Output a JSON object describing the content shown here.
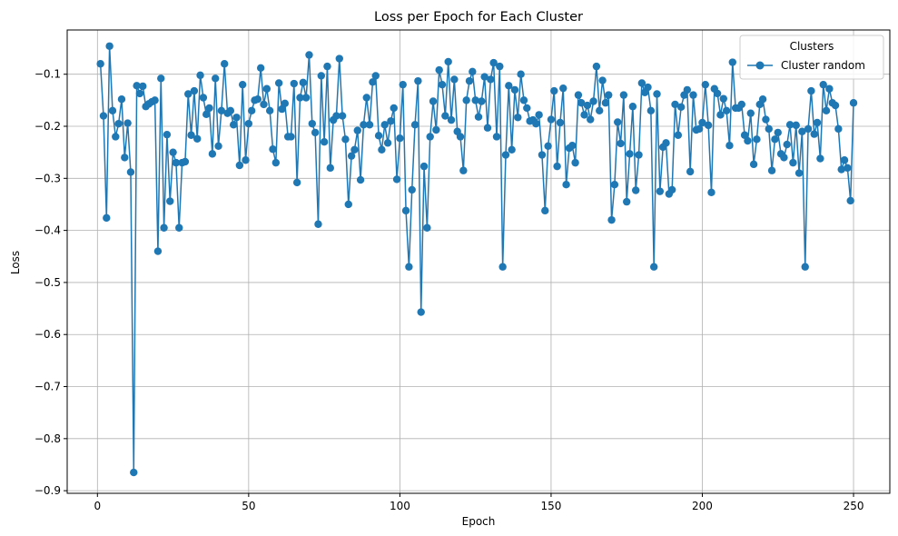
{
  "chart_data": {
    "type": "line",
    "title": "Loss per Epoch for Each Cluster",
    "xlabel": "Epoch",
    "ylabel": "Loss",
    "xlim": [
      -10,
      262
    ],
    "ylim": [
      -0.905,
      -0.015
    ],
    "xticks": [
      0,
      50,
      100,
      150,
      200,
      250
    ],
    "yticks": [
      -0.9,
      -0.8,
      -0.7,
      -0.6,
      -0.5,
      -0.4,
      -0.3,
      -0.2,
      -0.1
    ],
    "grid": true,
    "legend": {
      "title": "Clusters",
      "placement": "top-right"
    },
    "series": [
      {
        "name": "Cluster random",
        "color": "#1f77b4",
        "marker": "circle",
        "x": [
          1,
          2,
          3,
          4,
          5,
          6,
          7,
          8,
          9,
          10,
          11,
          12,
          13,
          14,
          15,
          16,
          17,
          18,
          19,
          20,
          21,
          22,
          23,
          24,
          25,
          26,
          27,
          28,
          29,
          30,
          31,
          32,
          33,
          34,
          35,
          36,
          37,
          38,
          39,
          40,
          41,
          42,
          43,
          44,
          45,
          46,
          47,
          48,
          49,
          50,
          51,
          52,
          53,
          54,
          55,
          56,
          57,
          58,
          59,
          60,
          61,
          62,
          63,
          64,
          65,
          66,
          67,
          68,
          69,
          70,
          71,
          72,
          73,
          74,
          75,
          76,
          77,
          78,
          79,
          80,
          81,
          82,
          83,
          84,
          85,
          86,
          87,
          88,
          89,
          90,
          91,
          92,
          93,
          94,
          95,
          96,
          97,
          98,
          99,
          100,
          101,
          102,
          103,
          104,
          105,
          106,
          107,
          108,
          109,
          110,
          111,
          112,
          113,
          114,
          115,
          116,
          117,
          118,
          119,
          120,
          121,
          122,
          123,
          124,
          125,
          126,
          127,
          128,
          129,
          130,
          131,
          132,
          133,
          134,
          135,
          136,
          137,
          138,
          139,
          140,
          141,
          142,
          143,
          144,
          145,
          146,
          147,
          148,
          149,
          150,
          151,
          152,
          153,
          154,
          155,
          156,
          157,
          158,
          159,
          160,
          161,
          162,
          163,
          164,
          165,
          166,
          167,
          168,
          169,
          170,
          171,
          172,
          173,
          174,
          175,
          176,
          177,
          178,
          179,
          180,
          181,
          182,
          183,
          184,
          185,
          186,
          187,
          188,
          189,
          190,
          191,
          192,
          193,
          194,
          195,
          196,
          197,
          198,
          199,
          200,
          201,
          202,
          203,
          204,
          205,
          206,
          207,
          208,
          209,
          210,
          211,
          212,
          213,
          214,
          215,
          216,
          217,
          218,
          219,
          220,
          221,
          222,
          223,
          224,
          225,
          226,
          227,
          228,
          229,
          230,
          231,
          232,
          233,
          234,
          235,
          236,
          237,
          238,
          239,
          240,
          241,
          242,
          243,
          244,
          245,
          246,
          247,
          248,
          249,
          250
        ],
        "values": [
          -0.08,
          -0.18,
          -0.376,
          -0.046,
          -0.17,
          -0.22,
          -0.195,
          -0.148,
          -0.26,
          -0.194,
          -0.288,
          -0.865,
          -0.122,
          -0.137,
          -0.123,
          -0.162,
          -0.157,
          -0.153,
          -0.15,
          -0.44,
          -0.108,
          -0.395,
          -0.216,
          -0.344,
          -0.25,
          -0.27,
          -0.395,
          -0.27,
          -0.268,
          -0.138,
          -0.217,
          -0.132,
          -0.224,
          -0.102,
          -0.145,
          -0.177,
          -0.165,
          -0.253,
          -0.108,
          -0.238,
          -0.17,
          -0.08,
          -0.175,
          -0.17,
          -0.197,
          -0.183,
          -0.275,
          -0.12,
          -0.265,
          -0.195,
          -0.17,
          -0.15,
          -0.148,
          -0.088,
          -0.158,
          -0.128,
          -0.17,
          -0.244,
          -0.27,
          -0.117,
          -0.167,
          -0.156,
          -0.22,
          -0.22,
          -0.118,
          -0.308,
          -0.145,
          -0.116,
          -0.145,
          -0.063,
          -0.195,
          -0.212,
          -0.388,
          -0.103,
          -0.23,
          -0.085,
          -0.28,
          -0.188,
          -0.18,
          -0.07,
          -0.18,
          -0.225,
          -0.35,
          -0.257,
          -0.245,
          -0.208,
          -0.303,
          -0.197,
          -0.145,
          -0.197,
          -0.115,
          -0.103,
          -0.218,
          -0.245,
          -0.197,
          -0.232,
          -0.19,
          -0.165,
          -0.302,
          -0.223,
          -0.12,
          -0.362,
          -0.47,
          -0.322,
          -0.197,
          -0.113,
          -0.557,
          -0.277,
          -0.395,
          -0.22,
          -0.152,
          -0.207,
          -0.092,
          -0.12,
          -0.18,
          -0.076,
          -0.188,
          -0.11,
          -0.21,
          -0.22,
          -0.285,
          -0.15,
          -0.113,
          -0.095,
          -0.15,
          -0.182,
          -0.152,
          -0.105,
          -0.203,
          -0.11,
          -0.078,
          -0.22,
          -0.085,
          -0.47,
          -0.255,
          -0.122,
          -0.245,
          -0.13,
          -0.183,
          -0.1,
          -0.15,
          -0.165,
          -0.19,
          -0.188,
          -0.195,
          -0.178,
          -0.255,
          -0.362,
          -0.238,
          -0.187,
          -0.132,
          -0.277,
          -0.193,
          -0.127,
          -0.312,
          -0.242,
          -0.237,
          -0.27,
          -0.14,
          -0.155,
          -0.178,
          -0.16,
          -0.187,
          -0.152,
          -0.085,
          -0.17,
          -0.112,
          -0.155,
          -0.14,
          -0.38,
          -0.312,
          -0.192,
          -0.233,
          -0.14,
          -0.345,
          -0.253,
          -0.162,
          -0.323,
          -0.255,
          -0.117,
          -0.135,
          -0.125,
          -0.17,
          -0.47,
          -0.138,
          -0.325,
          -0.24,
          -0.232,
          -0.33,
          -0.322,
          -0.158,
          -0.217,
          -0.163,
          -0.14,
          -0.13,
          -0.287,
          -0.14,
          -0.207,
          -0.205,
          -0.193,
          -0.12,
          -0.198,
          -0.327,
          -0.128,
          -0.137,
          -0.178,
          -0.147,
          -0.17,
          -0.237,
          -0.077,
          -0.165,
          -0.165,
          -0.158,
          -0.217,
          -0.228,
          -0.175,
          -0.273,
          -0.225,
          -0.158,
          -0.148,
          -0.187,
          -0.205,
          -0.285,
          -0.225,
          -0.212,
          -0.253,
          -0.26,
          -0.235,
          -0.197,
          -0.27,
          -0.198,
          -0.29,
          -0.21,
          -0.47,
          -0.205,
          -0.132,
          -0.215,
          -0.193,
          -0.262,
          -0.12,
          -0.17,
          -0.128,
          -0.155,
          -0.16,
          -0.205,
          -0.283,
          -0.265,
          -0.28,
          -0.343,
          -0.155
        ]
      }
    ]
  }
}
